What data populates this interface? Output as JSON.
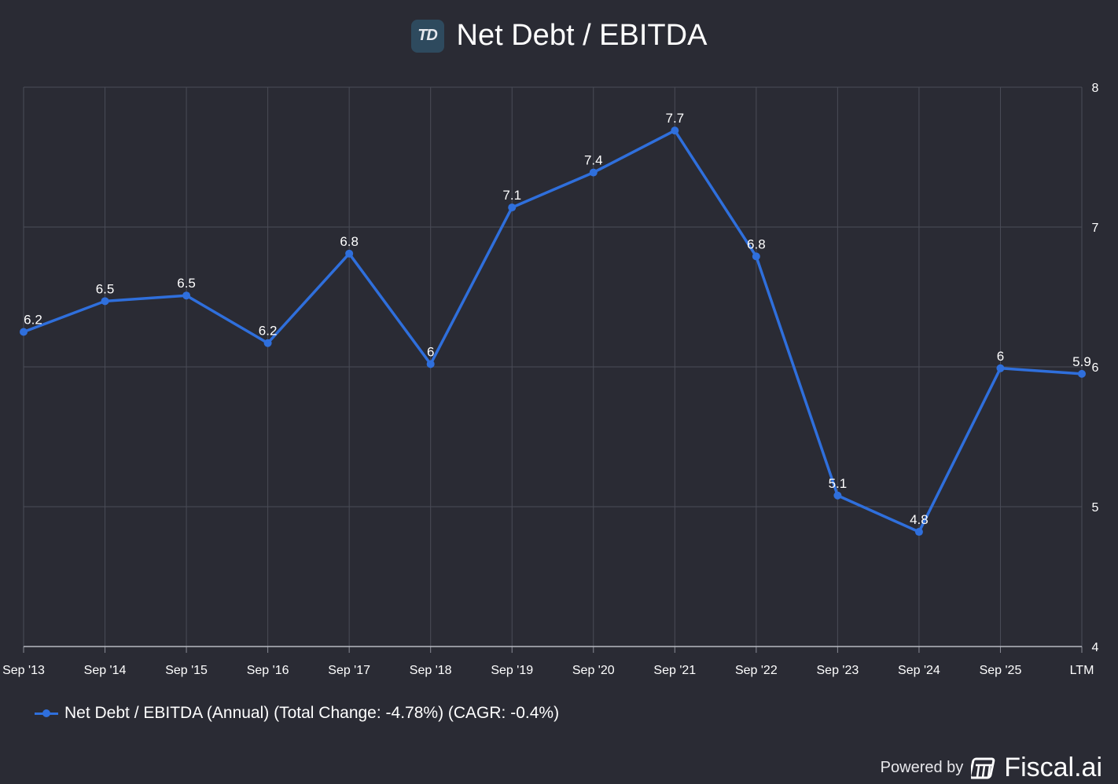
{
  "header": {
    "logo_text": "TD",
    "title": "Net Debt / EBITDA"
  },
  "chart_data": {
    "type": "line",
    "title": "Net Debt / EBITDA",
    "categories": [
      "Sep '13",
      "Sep '14",
      "Sep '15",
      "Sep '16",
      "Sep '17",
      "Sep '18",
      "Sep '19",
      "Sep '20",
      "Sep '21",
      "Sep '22",
      "Sep '23",
      "Sep '24",
      "Sep '25",
      "LTM"
    ],
    "series": [
      {
        "name": "Net Debt / EBITDA (Annual) (Total Change: -4.78%) (CAGR: -0.4%)",
        "values": [
          6.25,
          6.47,
          6.51,
          6.17,
          6.81,
          6.02,
          7.14,
          7.39,
          7.69,
          6.79,
          5.08,
          4.82,
          5.99,
          5.95
        ],
        "labels": [
          "6.2",
          "6.5",
          "6.5",
          "6.2",
          "6.8",
          "6",
          "7.1",
          "7.4",
          "7.7",
          "6.8",
          "5.1",
          "4.8",
          "6",
          "5.9"
        ],
        "color": "#2f6fdc"
      }
    ],
    "ylim": [
      4,
      8
    ],
    "yticks": [
      "4",
      "5",
      "6",
      "7",
      "8"
    ],
    "yaxis_position": "right",
    "grid": true,
    "legend_position": "bottom-left"
  },
  "legend": {
    "label": "Net Debt / EBITDA (Annual) (Total Change: -4.78%) (CAGR: -0.4%)"
  },
  "footer": {
    "powered_by": "Powered by",
    "brand": "Fiscal.ai"
  },
  "colors": {
    "background": "#2a2b34",
    "grid": "#4a4c57",
    "series": "#2f6fdc",
    "text": "#ffffff"
  }
}
